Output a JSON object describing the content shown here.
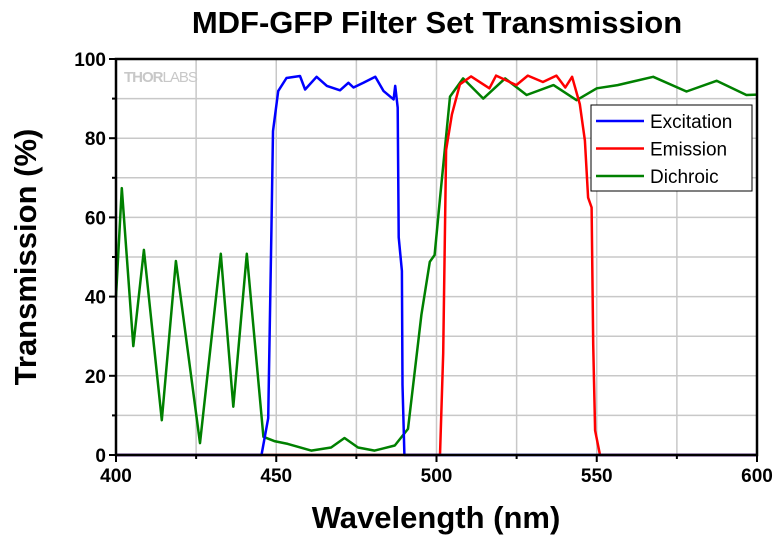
{
  "chart_data": {
    "type": "line",
    "title": "MDF-GFP Filter Set Transmission",
    "xlabel": "Wavelength (nm)",
    "ylabel": "Transmission (%)",
    "xlim": [
      400,
      600
    ],
    "ylim": [
      0,
      100
    ],
    "xticks": [
      400,
      450,
      500,
      550,
      600
    ],
    "yticks": [
      0,
      20,
      40,
      60,
      80,
      100
    ],
    "grid": true,
    "legend_position": "top-right",
    "watermark": "THORLABS",
    "series": [
      {
        "name": "Excitation",
        "color": "#0000ff",
        "x": [
          400,
          445.4,
          447.5,
          448.5,
          449,
          450.6,
          453.2,
          457.4,
          459,
          462.6,
          465.8,
          469.9,
          472.5,
          474.1,
          477.2,
          480.9,
          483.5,
          486.6,
          487.1,
          487.9,
          488.2,
          489.2,
          489.4,
          490,
          600
        ],
        "y": [
          0,
          0,
          9.3,
          56.5,
          81.8,
          91.9,
          95.2,
          95.7,
          92.3,
          95.5,
          93.2,
          92.1,
          94,
          92.8,
          94,
          95.5,
          91.9,
          89.8,
          93.2,
          87.7,
          55,
          46.5,
          17.7,
          0,
          0
        ]
      },
      {
        "name": "Emission",
        "color": "#ff0000",
        "x": [
          400,
          501.1,
          502.1,
          503,
          504.8,
          507.3,
          510.8,
          516.5,
          518.6,
          524.9,
          528.5,
          533.2,
          537.4,
          540.2,
          542.3,
          544.7,
          546.3,
          547.3,
          548.4,
          548.9,
          549.5,
          551,
          600
        ],
        "y": [
          0,
          0,
          25.7,
          77,
          86,
          93.6,
          95.6,
          92.6,
          95.8,
          93.4,
          95.8,
          94.2,
          95.8,
          92.8,
          95.5,
          88.6,
          79.4,
          65,
          62.5,
          28,
          6.2,
          0,
          0
        ]
      },
      {
        "name": "Dichroic",
        "color": "#008000",
        "x": [
          400,
          401.8,
          405.4,
          408.7,
          414.3,
          418.7,
          426.2,
          432.7,
          436.6,
          440.8,
          446,
          449.4,
          453.6,
          460.9,
          467.1,
          471.3,
          475.5,
          480.7,
          487,
          491.1,
          495.3,
          497.9,
          499.4,
          501.1,
          504.2,
          508.3,
          514.6,
          521.4,
          528.1,
          536.5,
          543.7,
          550,
          556.5,
          567.6,
          578,
          587.4,
          596.7,
          600
        ],
        "y": [
          40,
          67.4,
          27.5,
          51.8,
          8.8,
          49,
          3,
          50.8,
          12.2,
          50.8,
          4.6,
          3.5,
          2.8,
          1.1,
          1.9,
          4.3,
          1.9,
          1.1,
          2.4,
          6.6,
          35.4,
          48.8,
          50.5,
          64.8,
          90.5,
          95.1,
          90,
          95.1,
          90.9,
          93.4,
          89.6,
          92.6,
          93.4,
          95.5,
          91.8,
          94.5,
          90.9,
          91
        ]
      }
    ]
  }
}
